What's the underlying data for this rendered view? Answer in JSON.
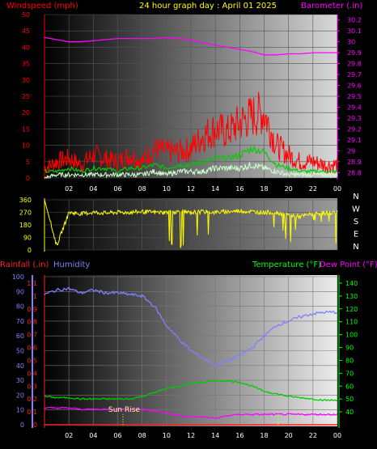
{
  "header": {
    "windspeed_label": "Windspeed (mph)",
    "title": "24 hour graph day : April 01 2025",
    "barometer_label": "Barometer (.in)"
  },
  "bottom_header": {
    "rainfall_label": "Rainfall (.in)",
    "humidity_label": "Humidity",
    "temperature_label": "Temperature (°F)",
    "dewpoint_label": "Dew Point (°F)"
  },
  "colors": {
    "wind": "#ff0000",
    "barometer": "#ff00ff",
    "gust_avg": "#00cc00",
    "wind_avg": "#ccffcc",
    "direction": "#ffff00",
    "rain": "#ff2020",
    "humidity": "#8080ff",
    "temperature": "#00cc00",
    "dewpoint": "#ff00ff",
    "right_axis": "#00ff00"
  },
  "chart_data": [
    {
      "type": "line",
      "name": "wind",
      "x_ticks": [
        "02",
        "04",
        "06",
        "08",
        "10",
        "12",
        "14",
        "16",
        "18",
        "20",
        "22",
        "00"
      ],
      "y_left_ticks": [
        "0",
        "5",
        "10",
        "15",
        "20",
        "25",
        "30",
        "35",
        "40",
        "45",
        "50"
      ],
      "y_left_range": [
        0,
        50
      ],
      "y_right_ticks": [
        "28.8",
        "28.9",
        "29",
        "29.1",
        "29.2",
        "29.3",
        "29.4",
        "29.5",
        "29.6",
        "29.7",
        "29.8",
        "29.9",
        "30",
        "30.1",
        "30.2"
      ],
      "y_right_range": [
        28.75,
        30.25
      ],
      "x_hours": [
        0,
        1,
        2,
        3,
        4,
        5,
        6,
        7,
        8,
        9,
        10,
        11,
        12,
        13,
        14,
        15,
        16,
        17,
        18,
        19,
        20,
        21,
        22,
        23,
        24
      ],
      "series": [
        {
          "name": "wind_gust",
          "values": [
            3,
            5,
            6,
            4,
            7,
            6,
            5,
            7,
            5,
            9,
            8,
            8,
            9,
            13,
            15,
            14,
            17,
            19,
            20,
            10,
            7,
            5,
            5,
            4,
            4
          ]
        },
        {
          "name": "wind_avg",
          "values": [
            2,
            2,
            3,
            2,
            3,
            3,
            2,
            3,
            3,
            4,
            3,
            4,
            4,
            5,
            6,
            6,
            7,
            9,
            8,
            4,
            3,
            2,
            2,
            2,
            2
          ]
        },
        {
          "name": "wind_speed",
          "values": [
            0,
            1,
            1,
            1,
            1,
            1,
            1,
            1,
            1,
            2,
            1,
            2,
            2,
            2,
            3,
            3,
            3,
            4,
            3,
            2,
            1,
            1,
            1,
            1,
            1
          ]
        },
        {
          "name": "barometer",
          "values": [
            30.04,
            30.02,
            30.0,
            30.0,
            30.01,
            30.02,
            30.03,
            30.03,
            30.03,
            30.03,
            30.04,
            30.03,
            30.02,
            29.99,
            29.97,
            29.95,
            29.93,
            29.91,
            29.88,
            29.88,
            29.89,
            29.89,
            29.9,
            29.9,
            29.9
          ]
        }
      ]
    },
    {
      "type": "scatter",
      "name": "wind_direction",
      "x_ticks": [
        "02",
        "04",
        "06",
        "08",
        "10",
        "12",
        "14",
        "16",
        "18",
        "20",
        "22",
        "00"
      ],
      "y_left_ticks": [
        "0",
        "90",
        "180",
        "270",
        "360"
      ],
      "y_right_ticks": [
        "N",
        "W",
        "S",
        "E",
        "N"
      ],
      "y_range": [
        0,
        360
      ],
      "x_hours": [
        0,
        1,
        2,
        3,
        4,
        5,
        6,
        7,
        8,
        9,
        10,
        11,
        12,
        13,
        14,
        15,
        16,
        17,
        18,
        19,
        20,
        21,
        22,
        23,
        24
      ],
      "values": [
        360,
        30,
        270,
        260,
        270,
        265,
        270,
        270,
        275,
        270,
        270,
        275,
        270,
        275,
        270,
        275,
        280,
        275,
        270,
        270,
        250,
        240,
        260,
        265,
        270
      ]
    },
    {
      "type": "line",
      "name": "temperature_humidity",
      "x_ticks": [
        "02",
        "04",
        "06",
        "08",
        "10",
        "12",
        "14",
        "16",
        "18",
        "20",
        "22",
        "00"
      ],
      "y_left_ticks": [
        "0",
        "10",
        "20",
        "30",
        "40",
        "50",
        "60",
        "70",
        "80",
        "90",
        "100"
      ],
      "y_rain_ticks": [
        "0",
        "0.1",
        "0.2",
        "0.3",
        "0.4",
        "0.5",
        "0.6",
        "0.7",
        "0.8",
        "0.9",
        "1",
        "1.1"
      ],
      "y_left_range": [
        0,
        100
      ],
      "y_right_ticks": [
        "40",
        "50",
        "60",
        "70",
        "80",
        "90",
        "100",
        "110",
        "120",
        "130",
        "140"
      ],
      "y_right_range": [
        30,
        145
      ],
      "annotation": "Sun Rise",
      "x_hours": [
        0,
        1,
        2,
        3,
        4,
        5,
        6,
        7,
        8,
        9,
        10,
        11,
        12,
        13,
        14,
        15,
        16,
        17,
        18,
        19,
        20,
        21,
        22,
        23,
        24
      ],
      "series": [
        {
          "name": "humidity",
          "values": [
            88,
            91,
            92,
            89,
            91,
            89,
            89,
            88,
            87,
            80,
            67,
            58,
            50,
            45,
            40,
            43,
            47,
            52,
            60,
            67,
            70,
            73,
            75,
            76,
            76
          ]
        },
        {
          "name": "temperature",
          "values": [
            52,
            51,
            51,
            50,
            50,
            50,
            50,
            50,
            52,
            55,
            58,
            60,
            62,
            63,
            64,
            64,
            63,
            60,
            56,
            54,
            52,
            51,
            50,
            49,
            49
          ]
        },
        {
          "name": "dewpoint",
          "values": [
            43,
            43,
            43,
            42,
            42,
            42,
            42,
            42,
            42,
            41,
            39,
            37,
            36,
            36,
            35,
            37,
            38,
            38,
            38,
            38,
            38,
            38,
            38,
            38,
            38
          ]
        },
        {
          "name": "rainfall",
          "values": [
            0,
            0,
            0,
            0,
            0,
            0,
            0,
            0,
            0,
            0,
            0,
            0,
            0,
            0,
            0,
            0,
            0,
            0,
            0,
            0,
            0,
            0,
            0,
            0,
            0
          ]
        }
      ]
    }
  ]
}
